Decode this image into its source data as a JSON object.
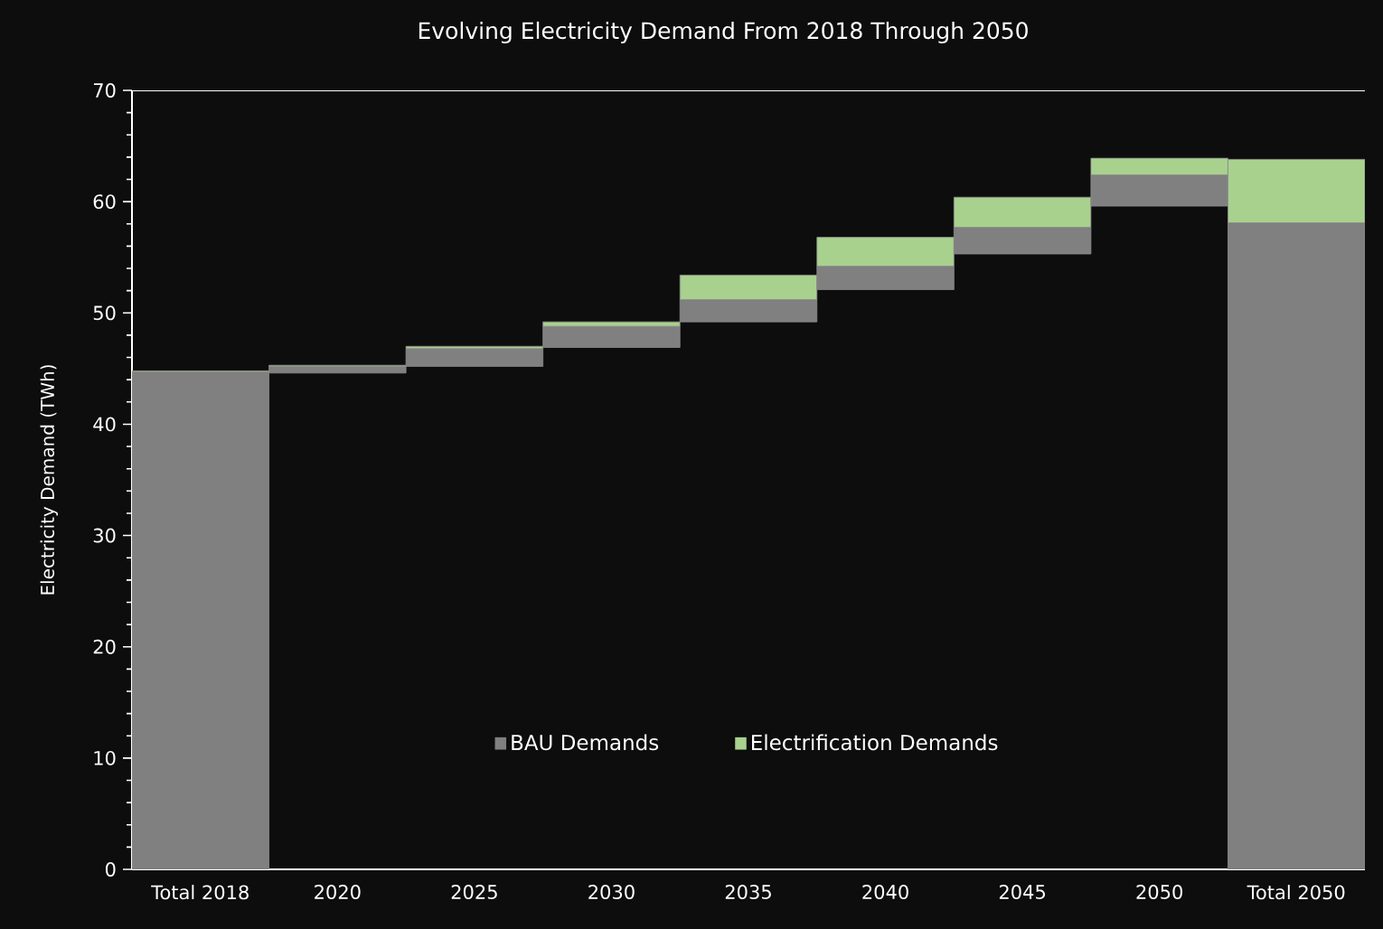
{
  "chart_data": {
    "type": "bar",
    "title": "Evolving Electricity Demand From 2018 Through 2050",
    "ylabel": "Electricity Demand (TWh)",
    "categories": [
      "Total 2018",
      "2020",
      "2025",
      "2030",
      "2035",
      "2040",
      "2045",
      "2050",
      "Total 2050"
    ],
    "series": [
      {
        "name": "BAU Demands",
        "color": "#808080",
        "base": [
          0,
          44.6,
          45.2,
          46.9,
          49.2,
          52.1,
          55.3,
          59.6,
          0
        ],
        "values": [
          44.7,
          0.6,
          1.6,
          1.9,
          2.0,
          2.1,
          2.4,
          2.8,
          58.1
        ]
      },
      {
        "name": "Electrification Demands",
        "color": "#a9d18e",
        "base": [
          44.7,
          45.2,
          46.8,
          48.8,
          51.2,
          54.2,
          57.7,
          62.4,
          58.1
        ],
        "values": [
          0.1,
          0.1,
          0.2,
          0.4,
          2.2,
          2.6,
          2.7,
          1.5,
          5.7
        ]
      }
    ],
    "ylim": [
      0,
      70
    ],
    "yticks": [
      0,
      10,
      20,
      30,
      40,
      50,
      60,
      70
    ],
    "legend": "bottom",
    "grid": false
  }
}
